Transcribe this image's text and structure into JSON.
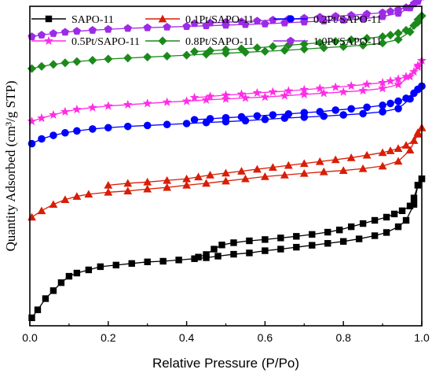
{
  "chart_data": {
    "type": "line",
    "title": "",
    "xlabel": "Relative Pressure (P/Po)",
    "ylabel": "Quantity Adsorbed (cm³/g STP)",
    "xlim": [
      0.0,
      1.0
    ],
    "xticks": [
      "0.0",
      "0.2",
      "0.4",
      "0.6",
      "0.8",
      "1.0"
    ],
    "ylim": [
      0,
      100
    ],
    "y_tick_labels_shown": false,
    "grid": false,
    "legend": "top, two rows of three",
    "series": [
      {
        "name": "SAPO-11",
        "color": "#000000",
        "marker": "square",
        "adsorption": [
          [
            0.005,
            2.5
          ],
          [
            0.02,
            5
          ],
          [
            0.04,
            8.5
          ],
          [
            0.06,
            11
          ],
          [
            0.08,
            13.5
          ],
          [
            0.1,
            15.5
          ],
          [
            0.12,
            16.5
          ],
          [
            0.15,
            17.5
          ],
          [
            0.18,
            18.5
          ],
          [
            0.22,
            19
          ],
          [
            0.26,
            19.5
          ],
          [
            0.3,
            20
          ],
          [
            0.34,
            20.2
          ],
          [
            0.38,
            20.6
          ],
          [
            0.42,
            21
          ],
          [
            0.45,
            21.3
          ],
          [
            0.48,
            21.8
          ],
          [
            0.52,
            22.4
          ],
          [
            0.56,
            22.8
          ],
          [
            0.6,
            23.5
          ],
          [
            0.64,
            24
          ],
          [
            0.68,
            24.6
          ],
          [
            0.72,
            25.2
          ],
          [
            0.76,
            25.8
          ],
          [
            0.8,
            26.4
          ],
          [
            0.84,
            27.2
          ],
          [
            0.88,
            28.2
          ],
          [
            0.91,
            29.2
          ],
          [
            0.94,
            31
          ],
          [
            0.96,
            33
          ],
          [
            0.98,
            38
          ],
          [
            0.99,
            44
          ],
          [
            1.0,
            46
          ]
        ],
        "desorption": [
          [
            1.0,
            46
          ],
          [
            0.99,
            44
          ],
          [
            0.98,
            40
          ],
          [
            0.97,
            37.5
          ],
          [
            0.95,
            36
          ],
          [
            0.93,
            35
          ],
          [
            0.91,
            34
          ],
          [
            0.88,
            33
          ],
          [
            0.85,
            32
          ],
          [
            0.82,
            31
          ],
          [
            0.79,
            30
          ],
          [
            0.76,
            29.3
          ],
          [
            0.72,
            28.6
          ],
          [
            0.68,
            28
          ],
          [
            0.64,
            27.5
          ],
          [
            0.6,
            27
          ],
          [
            0.56,
            26.6
          ],
          [
            0.52,
            26
          ],
          [
            0.49,
            25.3
          ],
          [
            0.47,
            24
          ],
          [
            0.45,
            22.3
          ],
          [
            0.43,
            21.5
          ]
        ]
      },
      {
        "name": "0.1Pt/SAPO-11",
        "color": "#d81e06",
        "marker": "triangle",
        "adsorption": [
          [
            0.005,
            34
          ],
          [
            0.03,
            36
          ],
          [
            0.06,
            38
          ],
          [
            0.09,
            39.5
          ],
          [
            0.12,
            40.5
          ],
          [
            0.15,
            41.2
          ],
          [
            0.2,
            41.8
          ],
          [
            0.25,
            42.2
          ],
          [
            0.3,
            42.8
          ],
          [
            0.35,
            43.3
          ],
          [
            0.4,
            44
          ],
          [
            0.45,
            44.6
          ],
          [
            0.5,
            45.3
          ],
          [
            0.55,
            46
          ],
          [
            0.6,
            46.7
          ],
          [
            0.65,
            47.2
          ],
          [
            0.7,
            47.7
          ],
          [
            0.75,
            48.2
          ],
          [
            0.8,
            48.6
          ],
          [
            0.85,
            49.2
          ],
          [
            0.9,
            50
          ],
          [
            0.94,
            51.5
          ],
          [
            0.97,
            55
          ],
          [
            0.99,
            60
          ],
          [
            1.0,
            62
          ]
        ],
        "desorption": [
          [
            1.0,
            62
          ],
          [
            0.99,
            60.5
          ],
          [
            0.98,
            58
          ],
          [
            0.96,
            56.5
          ],
          [
            0.94,
            55.5
          ],
          [
            0.92,
            54.8
          ],
          [
            0.9,
            54.2
          ],
          [
            0.86,
            53.4
          ],
          [
            0.82,
            52.6
          ],
          [
            0.78,
            52
          ],
          [
            0.74,
            51.4
          ],
          [
            0.7,
            50.8
          ],
          [
            0.66,
            50.2
          ],
          [
            0.62,
            49.6
          ],
          [
            0.58,
            49
          ],
          [
            0.54,
            48.4
          ],
          [
            0.5,
            47.8
          ],
          [
            0.46,
            47.2
          ],
          [
            0.43,
            46.6
          ],
          [
            0.4,
            46
          ],
          [
            0.35,
            45.5
          ],
          [
            0.3,
            45
          ],
          [
            0.25,
            44.6
          ],
          [
            0.2,
            44
          ]
        ]
      },
      {
        "name": "0.2Pt/SAPO-11",
        "color": "#0000ff",
        "marker": "circle",
        "adsorption": [
          [
            0.005,
            57
          ],
          [
            0.03,
            58.5
          ],
          [
            0.06,
            59.6
          ],
          [
            0.09,
            60.4
          ],
          [
            0.12,
            61
          ],
          [
            0.16,
            61.6
          ],
          [
            0.2,
            62
          ],
          [
            0.25,
            62.4
          ],
          [
            0.3,
            62.7
          ],
          [
            0.35,
            63
          ],
          [
            0.4,
            63.3
          ],
          [
            0.45,
            63.6
          ],
          [
            0.5,
            63.9
          ],
          [
            0.55,
            64.2
          ],
          [
            0.6,
            64.6
          ],
          [
            0.65,
            65
          ],
          [
            0.7,
            65.3
          ],
          [
            0.75,
            65.6
          ],
          [
            0.8,
            66
          ],
          [
            0.85,
            66.4
          ],
          [
            0.9,
            67
          ],
          [
            0.94,
            68
          ],
          [
            0.97,
            71
          ],
          [
            0.99,
            74
          ],
          [
            1.0,
            75
          ]
        ],
        "desorption": [
          [
            1.0,
            75
          ],
          [
            0.99,
            74
          ],
          [
            0.98,
            72.8
          ],
          [
            0.96,
            71.2
          ],
          [
            0.94,
            70.3
          ],
          [
            0.92,
            69.6
          ],
          [
            0.9,
            69
          ],
          [
            0.86,
            68.4
          ],
          [
            0.82,
            67.9
          ],
          [
            0.78,
            67.5
          ],
          [
            0.74,
            67
          ],
          [
            0.7,
            66.7
          ],
          [
            0.66,
            66.3
          ],
          [
            0.62,
            66
          ],
          [
            0.58,
            65.7
          ],
          [
            0.54,
            65.4
          ],
          [
            0.5,
            65.1
          ],
          [
            0.46,
            64.8
          ],
          [
            0.42,
            64.5
          ]
        ]
      },
      {
        "name": "0.5Pt/SAPO-11",
        "color": "#ff2ce6",
        "marker": "star",
        "adsorption": [
          [
            0.005,
            64
          ],
          [
            0.03,
            65
          ],
          [
            0.06,
            66
          ],
          [
            0.09,
            67
          ],
          [
            0.12,
            67.7
          ],
          [
            0.16,
            68.3
          ],
          [
            0.2,
            68.8
          ],
          [
            0.25,
            69.2
          ],
          [
            0.3,
            69.6
          ],
          [
            0.35,
            70
          ],
          [
            0.4,
            70.3
          ],
          [
            0.45,
            70.7
          ],
          [
            0.5,
            71
          ],
          [
            0.55,
            71.3
          ],
          [
            0.6,
            71.6
          ],
          [
            0.65,
            72
          ],
          [
            0.7,
            72.4
          ],
          [
            0.75,
            72.8
          ],
          [
            0.8,
            73.2
          ],
          [
            0.85,
            73.6
          ],
          [
            0.9,
            74.3
          ],
          [
            0.94,
            75.5
          ],
          [
            0.97,
            78
          ],
          [
            0.99,
            81
          ],
          [
            1.0,
            83
          ]
        ],
        "desorption": [
          [
            1.0,
            83
          ],
          [
            0.99,
            81.5
          ],
          [
            0.98,
            79.5
          ],
          [
            0.96,
            78
          ],
          [
            0.94,
            77.2
          ],
          [
            0.92,
            76.6
          ],
          [
            0.9,
            76.1
          ],
          [
            0.86,
            75.6
          ],
          [
            0.82,
            75.1
          ],
          [
            0.78,
            74.7
          ],
          [
            0.74,
            74.3
          ],
          [
            0.7,
            73.9
          ],
          [
            0.66,
            73.5
          ],
          [
            0.62,
            73.2
          ],
          [
            0.58,
            72.9
          ],
          [
            0.54,
            72.5
          ],
          [
            0.5,
            72.2
          ],
          [
            0.46,
            71.8
          ],
          [
            0.42,
            71.4
          ]
        ]
      },
      {
        "name": "0.8Pt/SAPO-11",
        "color": "#1b8a1b",
        "marker": "diamond",
        "adsorption": [
          [
            0.005,
            80.5
          ],
          [
            0.03,
            81.2
          ],
          [
            0.06,
            81.8
          ],
          [
            0.09,
            82.3
          ],
          [
            0.12,
            82.7
          ],
          [
            0.16,
            83.1
          ],
          [
            0.2,
            83.5
          ],
          [
            0.25,
            83.8
          ],
          [
            0.3,
            84.1
          ],
          [
            0.35,
            84.4
          ],
          [
            0.4,
            84.7
          ],
          [
            0.45,
            85
          ],
          [
            0.5,
            85.3
          ],
          [
            0.55,
            85.6
          ],
          [
            0.6,
            85.9
          ],
          [
            0.65,
            86.2
          ],
          [
            0.7,
            86.6
          ],
          [
            0.75,
            87
          ],
          [
            0.8,
            87.4
          ],
          [
            0.85,
            87.8
          ],
          [
            0.9,
            88.5
          ],
          [
            0.94,
            89.6
          ],
          [
            0.97,
            92
          ],
          [
            0.99,
            95
          ],
          [
            1.0,
            97
          ]
        ],
        "desorption": [
          [
            1.0,
            97
          ],
          [
            0.99,
            95.8
          ],
          [
            0.98,
            94
          ],
          [
            0.96,
            92.5
          ],
          [
            0.94,
            91.6
          ],
          [
            0.92,
            91
          ],
          [
            0.9,
            90.5
          ],
          [
            0.86,
            90
          ],
          [
            0.82,
            89.5
          ],
          [
            0.78,
            89
          ],
          [
            0.74,
            88.6
          ],
          [
            0.7,
            88.2
          ],
          [
            0.66,
            87.8
          ],
          [
            0.62,
            87.4
          ],
          [
            0.58,
            87
          ],
          [
            0.54,
            86.7
          ],
          [
            0.5,
            86.4
          ],
          [
            0.46,
            86.1
          ],
          [
            0.42,
            85.8
          ]
        ]
      },
      {
        "name": "1.0Pt/SAPO-11",
        "color": "#9d2be6",
        "marker": "pentagon",
        "adsorption": [
          [
            0.005,
            90.5
          ],
          [
            0.03,
            91
          ],
          [
            0.06,
            91.5
          ],
          [
            0.09,
            91.9
          ],
          [
            0.12,
            92.2
          ],
          [
            0.16,
            92.5
          ],
          [
            0.2,
            92.8
          ],
          [
            0.25,
            93.1
          ],
          [
            0.3,
            93.3
          ],
          [
            0.35,
            93.5
          ],
          [
            0.4,
            93.7
          ],
          [
            0.45,
            93.9
          ],
          [
            0.5,
            94.1
          ],
          [
            0.55,
            94.3
          ],
          [
            0.6,
            94.5
          ],
          [
            0.65,
            94.8
          ],
          [
            0.7,
            95.1
          ],
          [
            0.75,
            95.4
          ],
          [
            0.8,
            95.7
          ],
          [
            0.85,
            96.1
          ],
          [
            0.9,
            96.8
          ],
          [
            0.94,
            97.8
          ],
          [
            0.97,
            99.5
          ],
          [
            0.99,
            101.5
          ],
          [
            1.0,
            103
          ]
        ],
        "desorption": [
          [
            1.0,
            103
          ],
          [
            0.99,
            102
          ],
          [
            0.98,
            100.8
          ],
          [
            0.96,
            99.6
          ],
          [
            0.94,
            98.9
          ],
          [
            0.92,
            98.4
          ],
          [
            0.9,
            98
          ],
          [
            0.86,
            97.6
          ],
          [
            0.82,
            97.2
          ],
          [
            0.78,
            96.9
          ],
          [
            0.74,
            96.6
          ],
          [
            0.7,
            96.3
          ],
          [
            0.66,
            96
          ],
          [
            0.62,
            95.7
          ],
          [
            0.58,
            95.4
          ],
          [
            0.54,
            95.2
          ],
          [
            0.5,
            95
          ],
          [
            0.46,
            94.8
          ],
          [
            0.42,
            94.6
          ]
        ]
      }
    ]
  }
}
